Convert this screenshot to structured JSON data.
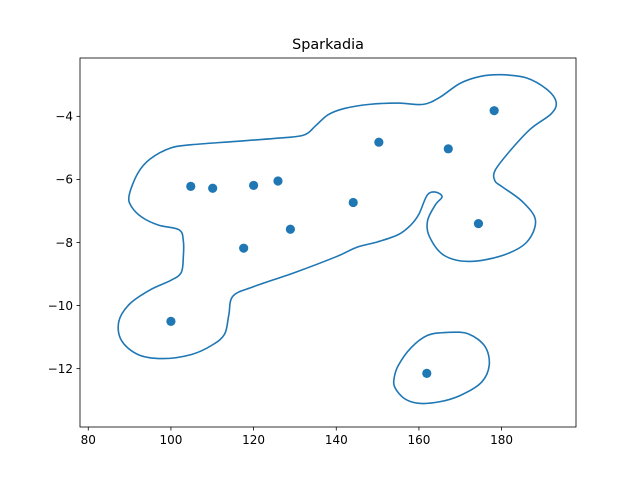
{
  "chart_data": {
    "type": "scatter",
    "title": "Sparkadia",
    "xlabel": "",
    "ylabel": "",
    "xlim": [
      78,
      198
    ],
    "ylim": [
      -13.85,
      -2.15
    ],
    "grid": false,
    "x_ticks": [
      80,
      100,
      120,
      140,
      160,
      180
    ],
    "y_ticks": [
      -12,
      -10,
      -8,
      -6,
      -4
    ],
    "marker_color": "#1f77b4",
    "line_color": "#1f77b4",
    "points": [
      {
        "x": 100.0,
        "y": -10.5
      },
      {
        "x": 104.8,
        "y": -6.22
      },
      {
        "x": 110.1,
        "y": -6.28
      },
      {
        "x": 117.6,
        "y": -8.18
      },
      {
        "x": 120.0,
        "y": -6.19
      },
      {
        "x": 125.9,
        "y": -6.05
      },
      {
        "x": 128.9,
        "y": -7.58
      },
      {
        "x": 144.1,
        "y": -6.73
      },
      {
        "x": 150.3,
        "y": -4.82
      },
      {
        "x": 161.9,
        "y": -12.15
      },
      {
        "x": 167.1,
        "y": -5.03
      },
      {
        "x": 174.4,
        "y": -7.4
      },
      {
        "x": 178.2,
        "y": -3.82
      }
    ],
    "boundaries": [
      {
        "closed": true,
        "points": [
          [
            89.9,
            -6.5
          ],
          [
            92,
            -5.8
          ],
          [
            95,
            -5.35
          ],
          [
            100,
            -5.0
          ],
          [
            105,
            -4.9
          ],
          [
            115,
            -4.8
          ],
          [
            125,
            -4.7
          ],
          [
            132,
            -4.6
          ],
          [
            135,
            -4.3
          ],
          [
            138,
            -3.95
          ],
          [
            142,
            -3.75
          ],
          [
            148,
            -3.62
          ],
          [
            155,
            -3.58
          ],
          [
            161,
            -3.62
          ],
          [
            165,
            -3.4
          ],
          [
            170,
            -2.95
          ],
          [
            175,
            -2.73
          ],
          [
            180,
            -2.68
          ],
          [
            186,
            -2.78
          ],
          [
            191,
            -3.15
          ],
          [
            193.2,
            -3.55
          ],
          [
            192,
            -3.92
          ],
          [
            187,
            -4.4
          ],
          [
            182,
            -5.1
          ],
          [
            178.4,
            -5.72
          ],
          [
            178.4,
            -6.05
          ],
          [
            180,
            -6.22
          ],
          [
            185,
            -6.7
          ],
          [
            188.2,
            -7.3
          ],
          [
            186,
            -8.0
          ],
          [
            180,
            -8.42
          ],
          [
            172,
            -8.6
          ],
          [
            166,
            -8.4
          ],
          [
            162.5,
            -7.8
          ],
          [
            162.1,
            -7.3
          ],
          [
            164,
            -6.8
          ],
          [
            165.6,
            -6.55
          ],
          [
            164,
            -6.4
          ],
          [
            162,
            -6.5
          ],
          [
            160,
            -7.1
          ],
          [
            158,
            -7.45
          ],
          [
            155,
            -7.75
          ],
          [
            150,
            -7.98
          ],
          [
            145,
            -8.15
          ],
          [
            140,
            -8.45
          ],
          [
            130,
            -8.95
          ],
          [
            120,
            -9.4
          ],
          [
            115,
            -9.7
          ],
          [
            114,
            -10.3
          ],
          [
            113,
            -10.9
          ],
          [
            110,
            -11.25
          ],
          [
            105,
            -11.55
          ],
          [
            98,
            -11.68
          ],
          [
            92,
            -11.55
          ],
          [
            88,
            -11.1
          ],
          [
            87.4,
            -10.5
          ],
          [
            90,
            -9.95
          ],
          [
            95,
            -9.5
          ],
          [
            100,
            -9.2
          ],
          [
            102.5,
            -8.95
          ],
          [
            103,
            -8.45
          ],
          [
            103,
            -7.95
          ],
          [
            102,
            -7.6
          ],
          [
            97,
            -7.45
          ],
          [
            93,
            -7.2
          ],
          [
            90.4,
            -6.85
          ]
        ]
      },
      {
        "closed": true,
        "points": [
          [
            154,
            -12.3
          ],
          [
            155,
            -11.9
          ],
          [
            158,
            -11.35
          ],
          [
            162,
            -10.95
          ],
          [
            167,
            -10.85
          ],
          [
            172,
            -10.9
          ],
          [
            176,
            -11.3
          ],
          [
            177,
            -11.9
          ],
          [
            175,
            -12.45
          ],
          [
            170,
            -12.85
          ],
          [
            165,
            -13.05
          ],
          [
            160,
            -13.1
          ],
          [
            156.5,
            -12.95
          ],
          [
            154.2,
            -12.6
          ]
        ]
      }
    ]
  }
}
